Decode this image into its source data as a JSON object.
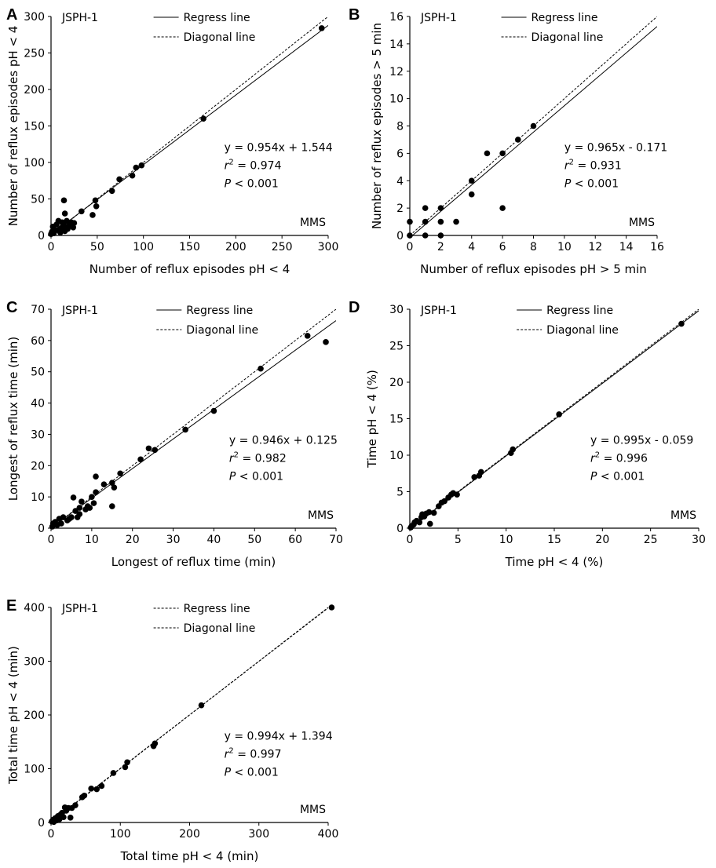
{
  "chart_data": [
    {
      "panel": "A",
      "type": "scatter",
      "tag": "JSPH-1",
      "corner_label": "MMS",
      "xlabel": "Number of reflux episodes pH < 4",
      "ylabel": "Number of reflux episodes pH < 4",
      "xlim": [
        0,
        300
      ],
      "ylim": [
        0,
        300
      ],
      "xticks": [
        0,
        50,
        100,
        150,
        200,
        250,
        300
      ],
      "yticks": [
        0,
        50,
        100,
        150,
        200,
        250,
        300
      ],
      "legend": {
        "regress": "Regress line",
        "diagonal": "Diagonal line",
        "regress_style": "solid"
      },
      "stats": {
        "equation": "y = 0.954x + 1.544",
        "r2_prefix": "r",
        "r2_sup": "2",
        "r2_value": " = 0.974",
        "p_prefix": "P",
        "p_value": " < 0.001"
      },
      "regression": {
        "slope": 0.954,
        "intercept": 1.544
      },
      "points": [
        [
          0,
          2
        ],
        [
          1,
          5
        ],
        [
          2,
          12
        ],
        [
          3,
          3
        ],
        [
          5,
          7
        ],
        [
          6,
          15
        ],
        [
          8,
          20
        ],
        [
          9,
          8
        ],
        [
          10,
          4
        ],
        [
          11,
          10
        ],
        [
          12,
          18
        ],
        [
          13,
          14
        ],
        [
          14,
          48
        ],
        [
          15,
          6
        ],
        [
          15,
          30
        ],
        [
          16,
          12
        ],
        [
          17,
          20
        ],
        [
          18,
          9
        ],
        [
          20,
          14
        ],
        [
          22,
          18
        ],
        [
          24,
          11
        ],
        [
          25,
          17
        ],
        [
          33,
          33
        ],
        [
          45,
          28
        ],
        [
          48,
          48
        ],
        [
          49,
          40
        ],
        [
          66,
          61
        ],
        [
          74,
          77
        ],
        [
          88,
          82
        ],
        [
          92,
          93
        ],
        [
          98,
          96
        ],
        [
          165,
          160
        ],
        [
          293,
          284
        ]
      ]
    },
    {
      "panel": "B",
      "type": "scatter",
      "tag": "JSPH-1",
      "corner_label": "MMS",
      "xlabel": "Number of reflux episodes pH > 5 min",
      "ylabel": "Number of reflux episodes > 5 min",
      "xlim": [
        0,
        16
      ],
      "ylim": [
        0,
        16
      ],
      "xticks": [
        0,
        2,
        4,
        6,
        8,
        10,
        12,
        14,
        16
      ],
      "yticks": [
        0,
        2,
        4,
        6,
        8,
        10,
        12,
        14,
        16
      ],
      "legend": {
        "regress": "Regress line",
        "diagonal": "Diagonal line",
        "regress_style": "solid"
      },
      "stats": {
        "equation": "y = 0.965x - 0.171",
        "r2_prefix": "r",
        "r2_sup": "2",
        "r2_value": " = 0.931",
        "p_prefix": "P",
        "p_value": " < 0.001"
      },
      "regression": {
        "slope": 0.965,
        "intercept": -0.171
      },
      "points": [
        [
          0,
          0
        ],
        [
          0,
          1
        ],
        [
          1,
          0
        ],
        [
          1,
          1
        ],
        [
          1,
          2
        ],
        [
          2,
          0
        ],
        [
          2,
          1
        ],
        [
          2,
          2
        ],
        [
          3,
          1
        ],
        [
          4,
          3
        ],
        [
          4,
          4
        ],
        [
          5,
          6
        ],
        [
          6,
          2
        ],
        [
          6,
          6
        ],
        [
          7,
          7
        ],
        [
          8,
          8
        ]
      ]
    },
    {
      "panel": "C",
      "type": "scatter",
      "tag": "JSPH-1",
      "corner_label": "MMS",
      "xlabel": "Longest of reflux time (min)",
      "ylabel": "Longest of reflux time (min)",
      "xlim": [
        0,
        70
      ],
      "ylim": [
        0,
        70
      ],
      "xticks": [
        0,
        10,
        20,
        30,
        40,
        50,
        60,
        70
      ],
      "yticks": [
        0,
        10,
        20,
        30,
        40,
        50,
        60,
        70
      ],
      "legend": {
        "regress": "Regress line",
        "diagonal": "Diagonal line",
        "regress_style": "solid"
      },
      "stats": {
        "equation": "y = 0.946x + 0.125",
        "r2_prefix": "r",
        "r2_sup": "2",
        "r2_value": " = 0.982",
        "p_prefix": "P",
        "p_value": " < 0.001"
      },
      "regression": {
        "slope": 0.946,
        "intercept": 0.125
      },
      "points": [
        [
          0.3,
          0.5
        ],
        [
          0.5,
          1.5
        ],
        [
          1,
          2
        ],
        [
          1.5,
          1
        ],
        [
          2,
          3
        ],
        [
          2.5,
          1.5
        ],
        [
          3,
          3.5
        ],
        [
          4,
          2.5
        ],
        [
          4.5,
          3
        ],
        [
          5,
          3.5
        ],
        [
          5.5,
          9.8
        ],
        [
          6,
          5.5
        ],
        [
          6.5,
          3.5
        ],
        [
          7,
          4.5
        ],
        [
          7,
          6.5
        ],
        [
          7.5,
          8.5
        ],
        [
          8.5,
          6
        ],
        [
          9,
          7
        ],
        [
          9.5,
          6.5
        ],
        [
          10,
          10
        ],
        [
          10.5,
          8
        ],
        [
          11,
          11.5
        ],
        [
          11,
          16.5
        ],
        [
          13,
          14
        ],
        [
          15,
          7
        ],
        [
          15,
          14.5
        ],
        [
          15.5,
          13
        ],
        [
          17,
          17.5
        ],
        [
          22,
          22
        ],
        [
          24,
          25.5
        ],
        [
          25.5,
          25
        ],
        [
          33,
          31.5
        ],
        [
          40,
          37.5
        ],
        [
          51.5,
          51
        ],
        [
          63,
          61.5
        ],
        [
          67.5,
          59.5
        ]
      ]
    },
    {
      "panel": "D",
      "type": "scatter",
      "tag": "JSPH-1",
      "corner_label": "MMS",
      "xlabel": "Time pH < 4 (%)",
      "ylabel": "Time pH < 4 (%)",
      "xlim": [
        0,
        30
      ],
      "ylim": [
        0,
        30
      ],
      "xticks": [
        0,
        5,
        10,
        15,
        20,
        25,
        30
      ],
      "yticks": [
        0,
        5,
        10,
        15,
        20,
        25,
        30
      ],
      "legend": {
        "regress": "Regress line",
        "diagonal": "Diagonal line",
        "regress_style": "solid"
      },
      "stats": {
        "equation": "y = 0.995x - 0.059",
        "r2_prefix": "r",
        "r2_sup": "2",
        "r2_value": " = 0.996",
        "p_prefix": "P",
        "p_value": " < 0.001"
      },
      "regression": {
        "slope": 0.995,
        "intercept": -0.059
      },
      "points": [
        [
          0.1,
          0.1
        ],
        [
          0.2,
          0.3
        ],
        [
          0.4,
          0.5
        ],
        [
          0.5,
          0.8
        ],
        [
          0.7,
          1.0
        ],
        [
          1.0,
          0.8
        ],
        [
          1.2,
          1.5
        ],
        [
          1.3,
          1.9
        ],
        [
          1.5,
          1.6
        ],
        [
          1.7,
          2.0
        ],
        [
          2.0,
          2.2
        ],
        [
          2.1,
          0.6
        ],
        [
          2.5,
          2.1
        ],
        [
          3.0,
          3.0
        ],
        [
          3.3,
          3.5
        ],
        [
          3.6,
          3.7
        ],
        [
          4.0,
          4.2
        ],
        [
          4.3,
          4.6
        ],
        [
          4.5,
          4.8
        ],
        [
          4.9,
          4.6
        ],
        [
          6.7,
          7.0
        ],
        [
          7.2,
          7.2
        ],
        [
          7.4,
          7.7
        ],
        [
          10.5,
          10.3
        ],
        [
          10.7,
          10.8
        ],
        [
          15.5,
          15.6
        ],
        [
          28.2,
          28.0
        ]
      ]
    },
    {
      "panel": "E",
      "type": "scatter",
      "tag": "JSPH-1",
      "corner_label": "MMS",
      "xlabel": "Total time pH < 4 (min)",
      "ylabel": "Total time pH < 4 (min)",
      "xlim": [
        0,
        400
      ],
      "ylim": [
        0,
        400
      ],
      "xticks": [
        0,
        100,
        200,
        300,
        400
      ],
      "yticks": [
        0,
        100,
        200,
        300,
        400
      ],
      "legend": {
        "regress": "Regress line",
        "diagonal": "Diagonal line",
        "regress_style": "dashed"
      },
      "stats": {
        "equation": "y = 0.994x + 1.394",
        "r2_prefix": "r",
        "r2_sup": "2",
        "r2_value": " = 0.997",
        "p_prefix": "P",
        "p_value": " < 0.001"
      },
      "regression": {
        "slope": 0.994,
        "intercept": 1.394
      },
      "points": [
        [
          1,
          2
        ],
        [
          3,
          5
        ],
        [
          4,
          1
        ],
        [
          6,
          8
        ],
        [
          8,
          4
        ],
        [
          10,
          12
        ],
        [
          12,
          6
        ],
        [
          14,
          15
        ],
        [
          16,
          18
        ],
        [
          18,
          10
        ],
        [
          20,
          28
        ],
        [
          22,
          22
        ],
        [
          25,
          27
        ],
        [
          28,
          9
        ],
        [
          30,
          27
        ],
        [
          35,
          32
        ],
        [
          45,
          47
        ],
        [
          48,
          50
        ],
        [
          58,
          63
        ],
        [
          66,
          62
        ],
        [
          73,
          68
        ],
        [
          90,
          92
        ],
        [
          107,
          103
        ],
        [
          110,
          112
        ],
        [
          148,
          142
        ],
        [
          150,
          147
        ],
        [
          217,
          218
        ],
        [
          405,
          400
        ]
      ]
    }
  ]
}
